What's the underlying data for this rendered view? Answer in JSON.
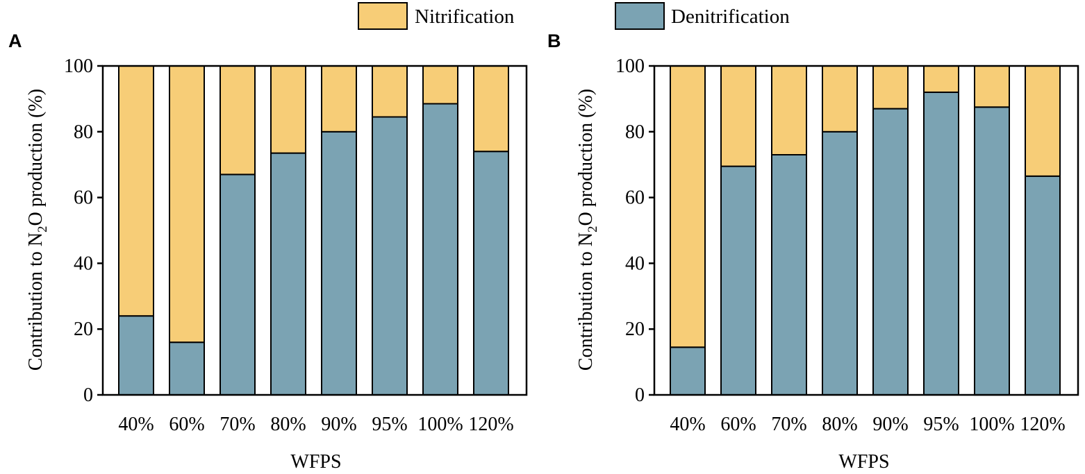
{
  "legend": {
    "position": "top-center",
    "items": [
      {
        "label": "Nitrification",
        "color": "#F7CD77"
      },
      {
        "label": "Denitrification",
        "color": "#7BA3B3"
      }
    ]
  },
  "chart_data": [
    {
      "type": "bar",
      "stacked": true,
      "panel_label": "A",
      "title": "",
      "xlabel": "WFPS",
      "ylabel_main": "Contribution to N",
      "ylabel_sub": "2",
      "ylabel_rest": "O production (%)",
      "ylim": [
        0,
        100
      ],
      "yticks": [
        "0",
        "20",
        "40",
        "60",
        "80",
        "100"
      ],
      "categories": [
        "40%",
        "60%",
        "70%",
        "80%",
        "90%",
        "95%",
        "100%",
        "120%"
      ],
      "series": [
        {
          "name": "Denitrification",
          "color": "#7BA3B3",
          "values": [
            24,
            16,
            67,
            73.5,
            80,
            84.5,
            88.5,
            74
          ]
        },
        {
          "name": "Nitrification",
          "color": "#F7CD77",
          "values": [
            76,
            84,
            33,
            26.5,
            20,
            15.5,
            11.5,
            26
          ]
        }
      ]
    },
    {
      "type": "bar",
      "stacked": true,
      "panel_label": "B",
      "title": "",
      "xlabel": "WFPS",
      "ylabel_main": "Contribution to N",
      "ylabel_sub": "2",
      "ylabel_rest": "O production (%)",
      "ylim": [
        0,
        100
      ],
      "yticks": [
        "0",
        "20",
        "40",
        "60",
        "80",
        "100"
      ],
      "categories": [
        "40%",
        "60%",
        "70%",
        "80%",
        "90%",
        "95%",
        "100%",
        "120%"
      ],
      "series": [
        {
          "name": "Denitrification",
          "color": "#7BA3B3",
          "values": [
            14.5,
            69.5,
            73,
            80,
            87,
            92,
            87.5,
            66.5
          ]
        },
        {
          "name": "Nitrification",
          "color": "#F7CD77",
          "values": [
            85.5,
            30.5,
            27,
            20,
            13,
            8,
            12.5,
            33.5
          ]
        }
      ]
    }
  ]
}
